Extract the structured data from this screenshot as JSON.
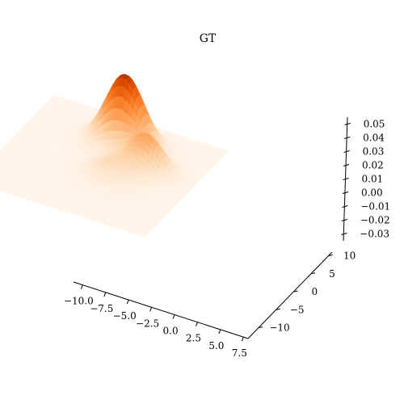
{
  "chart_data": {
    "type": "surface",
    "title": "GT",
    "colormap": "Oranges",
    "grid": false,
    "x_axis": {
      "range": [
        -11,
        8
      ],
      "ticks": [
        -10.0,
        -7.5,
        -5.0,
        -2.5,
        0.0,
        2.5,
        5.0,
        7.5
      ],
      "tick_labels": [
        "−10.0",
        "−7.5",
        "−5.0",
        "−2.5",
        "0.0",
        "2.5",
        "5.0",
        "7.5"
      ]
    },
    "y_axis": {
      "range": [
        -13,
        11
      ],
      "ticks": [
        -10,
        -5,
        0,
        5,
        10
      ],
      "tick_labels": [
        "−10",
        "−5",
        "0",
        "5",
        "10"
      ]
    },
    "z_axis": {
      "range": [
        -0.035,
        0.055
      ],
      "ticks": [
        -0.03,
        -0.02,
        -0.01,
        0.0,
        0.01,
        0.02,
        0.03,
        0.04,
        0.05
      ],
      "tick_labels": [
        "−0.03",
        "−0.02",
        "−0.01",
        "0.00",
        "0.01",
        "0.02",
        "0.03",
        "0.04",
        "0.05"
      ]
    },
    "peaks": [
      {
        "x": -1.0,
        "y": 5.0,
        "height": 0.052,
        "spread": 2.0
      },
      {
        "x": 3.0,
        "y": 1.0,
        "height": 0.025,
        "spread": 1.7
      },
      {
        "x": 0.5,
        "y": -2.5,
        "height": 0.012,
        "spread": 2.0
      }
    ]
  }
}
